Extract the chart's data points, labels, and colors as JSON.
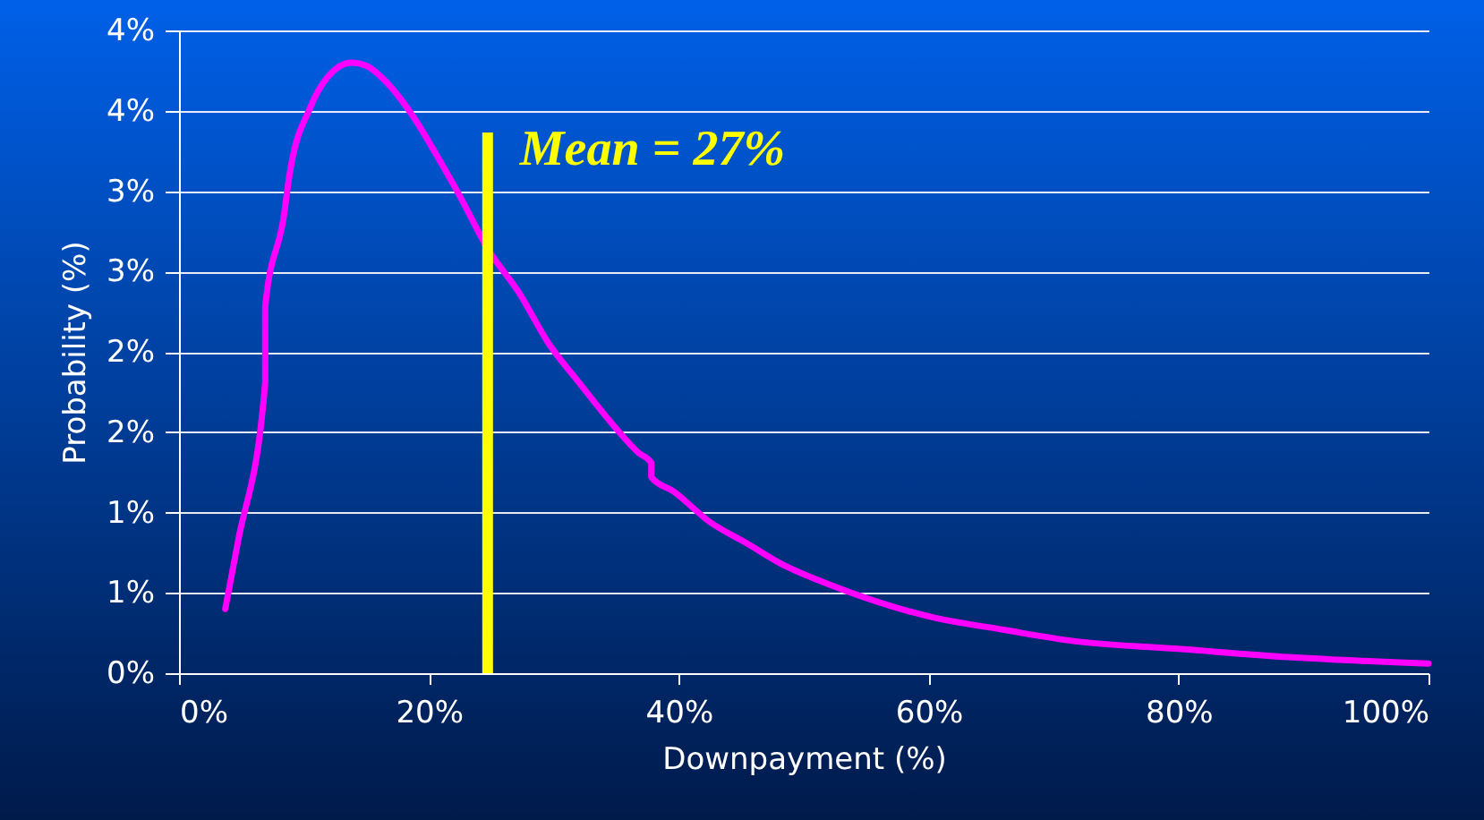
{
  "chart_data": {
    "type": "line",
    "xlabel": "Downpayment (%)",
    "ylabel": "Probability (%)",
    "x": [
      3.7,
      4.7,
      6.9,
      6.9,
      8.4,
      8.8,
      10.5,
      11.9,
      13.8,
      15.0,
      16.7,
      18.6,
      20.5,
      22.4,
      24.8,
      27.2,
      29.6,
      32.0,
      34.9,
      36.8,
      37.8,
      37.8,
      39.6,
      42.5,
      45.4,
      48.2,
      52.1,
      60.2,
      66,
      71.6,
      80.2,
      88.8,
      100
    ],
    "series": [
      {
        "color": "#ff00ff",
        "values": [
          0.4,
          0.81,
          1.81,
          2.28,
          2.85,
          3.08,
          3.52,
          3.71,
          3.8,
          3.78,
          3.67,
          3.48,
          3.24,
          2.98,
          2.63,
          2.37,
          2.05,
          1.81,
          1.53,
          1.37,
          1.31,
          1.22,
          1.13,
          0.94,
          0.81,
          0.68,
          0.55,
          0.35,
          0.27,
          0.2,
          0.15,
          0.1,
          0.06
        ]
      }
    ],
    "xlim": [
      0,
      100
    ],
    "ylim": [
      0,
      4
    ],
    "xticks": [
      {
        "value": 0,
        "label": "0%"
      },
      {
        "value": 20,
        "label": "20%"
      },
      {
        "value": 40,
        "label": "40%"
      },
      {
        "value": 60,
        "label": "60%"
      },
      {
        "value": 80,
        "label": "80%"
      },
      {
        "value": 100,
        "label": "100%"
      }
    ],
    "yticks": [
      {
        "value": 0,
        "label": "0%"
      },
      {
        "value": 0.5,
        "label": "1%"
      },
      {
        "value": 1,
        "label": "1%"
      },
      {
        "value": 1.5,
        "label": "2%"
      },
      {
        "value": 2,
        "label": "2%"
      },
      {
        "value": 2.5,
        "label": "3%"
      },
      {
        "value": 3,
        "label": "3%"
      },
      {
        "value": 3.5,
        "label": "4%"
      },
      {
        "value": 4,
        "label": "4%"
      }
    ],
    "grid": "y",
    "marker": "none",
    "line_style": "solid",
    "ref_lines": [
      {
        "axis": "x",
        "value": 24.7,
        "color": "#ffff00"
      }
    ],
    "annotations": [
      {
        "text": "Mean = 27%",
        "x": 24.7,
        "y": 3.1
      }
    ]
  }
}
